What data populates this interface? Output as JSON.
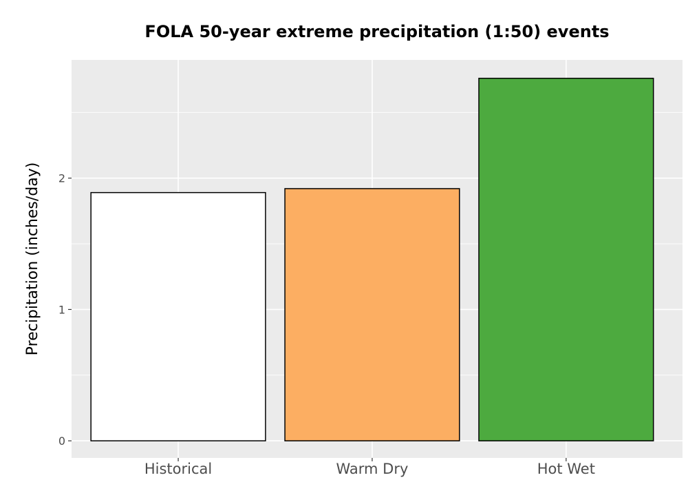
{
  "chart_data": {
    "type": "bar",
    "title": "FOLA 50-year extreme precipitation (1:50) events",
    "xlabel": "",
    "ylabel": "Precipitation (inches/day)",
    "categories": [
      "Historical",
      "Warm Dry",
      "Hot Wet"
    ],
    "values": [
      1.89,
      1.92,
      2.76
    ],
    "colors": [
      "#ffffff",
      "#fcae62",
      "#4daa3f"
    ],
    "bar_outline": "#000000",
    "panel_background": "#ebebeb",
    "grid_color": "#ffffff",
    "ylim": [
      -0.13,
      2.9
    ],
    "yticks": [
      0,
      1,
      2
    ],
    "ytick_labels": [
      "0",
      "1",
      "2"
    ],
    "grid": true,
    "legend": "none"
  }
}
